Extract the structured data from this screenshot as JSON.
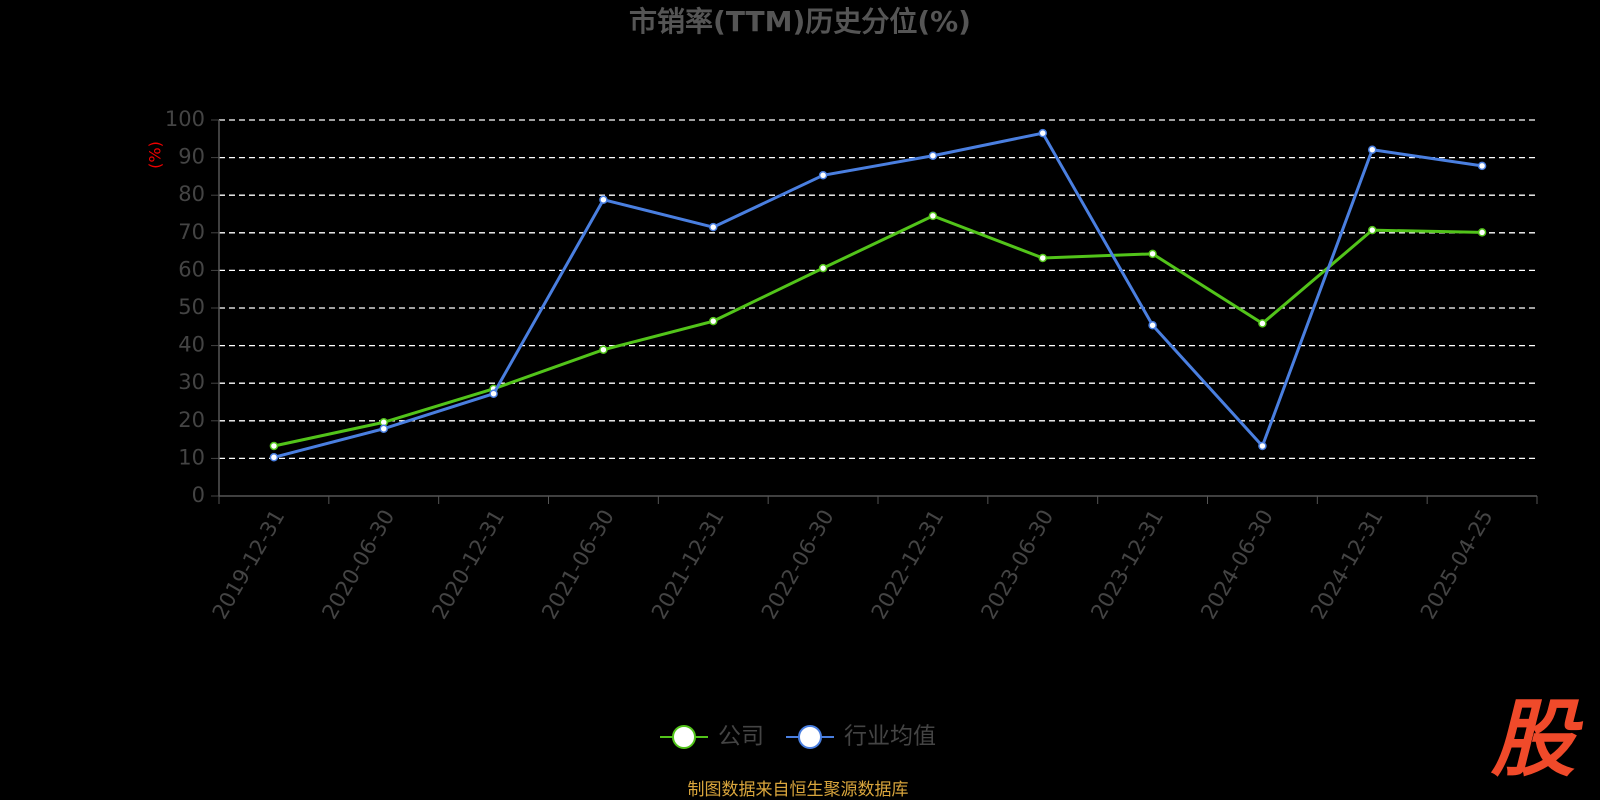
{
  "chart_data": {
    "type": "line",
    "title": "市销率(TTM)历史分位(%)",
    "y_label": "(%)",
    "categories": [
      "2019-12-31",
      "2020-06-30",
      "2020-12-31",
      "2021-06-30",
      "2021-12-31",
      "2022-06-30",
      "2022-12-31",
      "2023-06-30",
      "2023-12-31",
      "2024-06-30",
      "2024-12-31",
      "2025-04-25"
    ],
    "series": [
      {
        "name": "公司",
        "color": "#52c41a",
        "values": [
          13.3,
          19.6,
          28.5,
          38.9,
          46.5,
          60.6,
          74.5,
          63.3,
          64.4,
          45.9,
          70.7,
          70.1
        ]
      },
      {
        "name": "行业均值",
        "color": "#4a7fe0",
        "values": [
          10.3,
          17.9,
          27.2,
          78.8,
          71.5,
          85.3,
          90.5,
          96.5,
          45.4,
          13.3,
          92.1,
          87.8
        ]
      }
    ],
    "ylim": [
      0,
      100
    ],
    "yticks": [
      0,
      10,
      20,
      30,
      40,
      50,
      60,
      70,
      80,
      90,
      100
    ],
    "grid": true,
    "legend": "bottom",
    "source": "制图数据来自恒生聚源数据库",
    "logo": "股"
  }
}
